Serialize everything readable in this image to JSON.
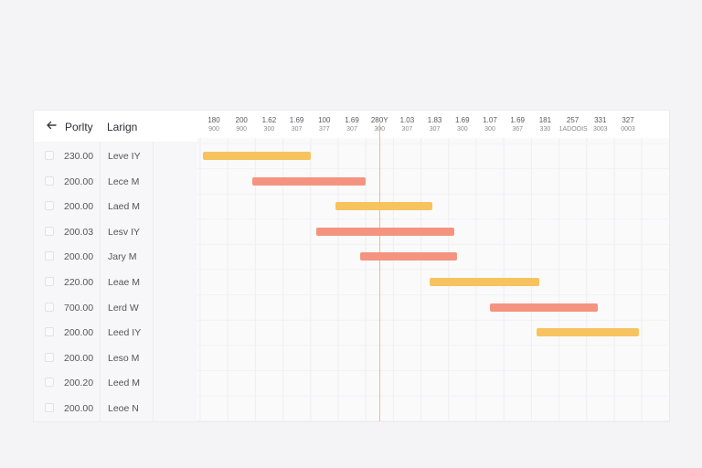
{
  "header": {
    "back_icon": "arrow-left-icon",
    "col_priority": "Porlty",
    "col_length": "Larign"
  },
  "rows": [
    {
      "priority": "230.00",
      "length": "Leve IY"
    },
    {
      "priority": "200.00",
      "length": "Lece M"
    },
    {
      "priority": "200.00",
      "length": "Laed M"
    },
    {
      "priority": "200.03",
      "length": "Lesv IY"
    },
    {
      "priority": "200.00",
      "length": "Jary M"
    },
    {
      "priority": "220.00",
      "length": "Leae M"
    },
    {
      "priority": "700.00",
      "length": "Lerd W"
    },
    {
      "priority": "200.00",
      "length": "Leed IY"
    },
    {
      "priority": "200.00",
      "length": "Leso M"
    },
    {
      "priority": "200.20",
      "length": "Leed M"
    },
    {
      "priority": "200.00",
      "length": "Leoe N"
    }
  ],
  "timeline": {
    "ticks": [
      {
        "top": "180",
        "sub": "900"
      },
      {
        "top": "200",
        "sub": "900"
      },
      {
        "top": "1.62",
        "sub": "300"
      },
      {
        "top": "1.69",
        "sub": "307"
      },
      {
        "top": "100",
        "sub": "377"
      },
      {
        "top": "1.69",
        "sub": "307"
      },
      {
        "top": "280Y",
        "sub": "300"
      },
      {
        "top": "1.03",
        "sub": "307"
      },
      {
        "top": "1.83",
        "sub": "307"
      },
      {
        "top": "1.69",
        "sub": "300"
      },
      {
        "top": "1.07",
        "sub": "300"
      },
      {
        "top": "1.69",
        "sub": "367"
      },
      {
        "top": "181",
        "sub": "330"
      },
      {
        "top": "257",
        "sub": "1ADOOIS"
      },
      {
        "top": "331",
        "sub": "3003"
      },
      {
        "top": "327",
        "sub": "0003"
      }
    ],
    "today_marker_index": 6.5
  },
  "bars": [
    {
      "row": 0,
      "start": 0.1,
      "end": 4.0,
      "color": "#f7c35f"
    },
    {
      "row": 1,
      "start": 1.9,
      "end": 6.0,
      "color": "#f49480"
    },
    {
      "row": 2,
      "start": 4.9,
      "end": 8.4,
      "color": "#f7c35f"
    },
    {
      "row": 3,
      "start": 4.2,
      "end": 9.2,
      "color": "#f49480"
    },
    {
      "row": 4,
      "start": 5.8,
      "end": 9.3,
      "color": "#f49480"
    },
    {
      "row": 5,
      "start": 8.3,
      "end": 12.3,
      "color": "#f7c35f"
    },
    {
      "row": 6,
      "start": 10.5,
      "end": 14.4,
      "color": "#f49480"
    },
    {
      "row": 7,
      "start": 12.2,
      "end": 15.9,
      "color": "#f7c35f"
    }
  ],
  "colors": {
    "bar_yellow": "#f7c35f",
    "bar_salmon": "#f49480",
    "today_line": "#f3b98a"
  }
}
